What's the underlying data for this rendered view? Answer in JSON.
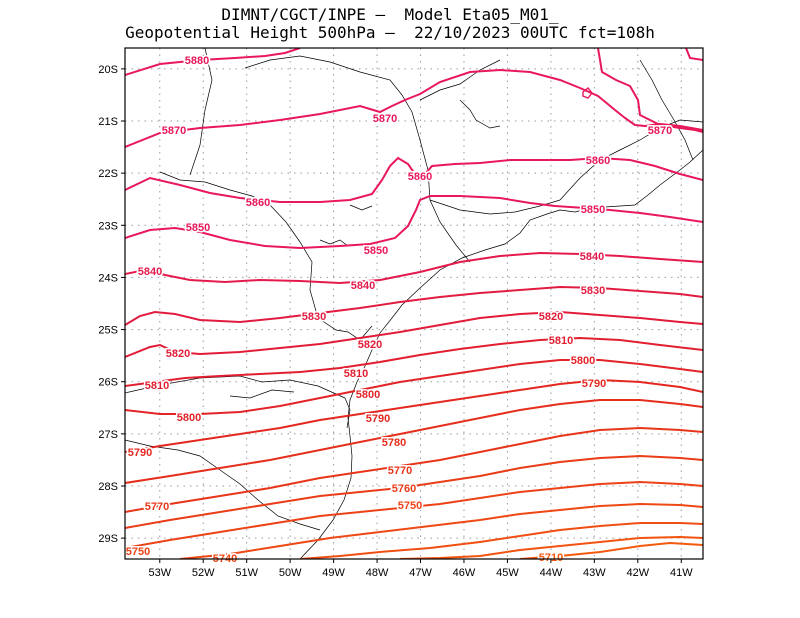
{
  "title": {
    "line1": "DIMNT/CGCT/INPE –  Model Eta05_M01_",
    "line2": "Geopotential Height 500hPa –  22/10/2023 00UTC fct=108h"
  },
  "chart_data": {
    "type": "contour",
    "variable": "Geopotential Height 500hPa",
    "units": "gpm",
    "lon_range": [
      -53.8,
      -40.5
    ],
    "lat_range": [
      -29.4,
      -19.6
    ],
    "lat_ticks": [
      "20S",
      "21S",
      "22S",
      "23S",
      "24S",
      "25S",
      "26S",
      "27S",
      "28S",
      "29S"
    ],
    "lon_ticks": [
      "53W",
      "52W",
      "51W",
      "50W",
      "49W",
      "48W",
      "47W",
      "46W",
      "45W",
      "44W",
      "43W",
      "42W",
      "41W"
    ],
    "grid": true,
    "contours": [
      {
        "level": 5880,
        "color": "#e8185a",
        "label_text": "5880"
      },
      {
        "level": 5870,
        "color": "#e8185a",
        "label_text": "5870"
      },
      {
        "level": 5860,
        "color": "#e8185a",
        "label_text": "5860"
      },
      {
        "level": 5850,
        "color": "#e8185a",
        "label_text": "5850"
      },
      {
        "level": 5840,
        "color": "#e41a4c",
        "label_text": "5840"
      },
      {
        "level": 5830,
        "color": "#e21c40",
        "label_text": "5830"
      },
      {
        "level": 5820,
        "color": "#e21c38",
        "label_text": "5820"
      },
      {
        "level": 5810,
        "color": "#e21f30",
        "label_text": "5810"
      },
      {
        "level": 5800,
        "color": "#e22328",
        "label_text": "5800"
      },
      {
        "level": 5790,
        "color": "#e42820",
        "label_text": "5790"
      },
      {
        "level": 5780,
        "color": "#e62e1c",
        "label_text": "5780"
      },
      {
        "level": 5770,
        "color": "#e8351a",
        "label_text": "5770"
      },
      {
        "level": 5760,
        "color": "#ea3c18",
        "label_text": "5760"
      },
      {
        "level": 5750,
        "color": "#ec4216",
        "label_text": "5750"
      },
      {
        "level": 5740,
        "color": "#ee4814",
        "label_text": "5740"
      },
      {
        "level": 5730,
        "color": "#f04e12",
        "label_text": ""
      },
      {
        "level": 5720,
        "color": "#f25410",
        "label_text": ""
      },
      {
        "level": 5710,
        "color": "#f45a0e",
        "label_text": "5710"
      }
    ]
  }
}
